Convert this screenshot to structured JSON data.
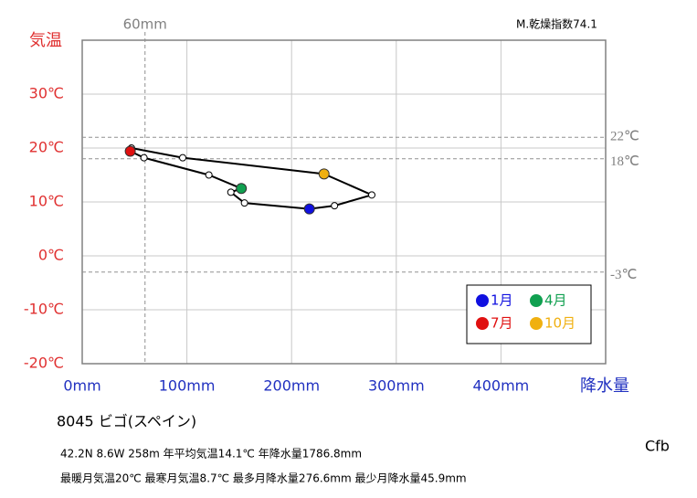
{
  "chart_data": {
    "type": "climograph",
    "y_label": "気温",
    "x_label": "降水量",
    "index_label": "M.乾燥指数74.1",
    "xlim": [
      0,
      500
    ],
    "ylim": [
      -20,
      40
    ],
    "xticks": [
      {
        "value": 0,
        "label": "0mm"
      },
      {
        "value": 100,
        "label": "100mm"
      },
      {
        "value": 200,
        "label": "200mm"
      },
      {
        "value": 300,
        "label": "300mm"
      },
      {
        "value": 400,
        "label": "400mm"
      }
    ],
    "yticks": [
      {
        "value": -20,
        "label": "-20℃"
      },
      {
        "value": -10,
        "label": "-10℃"
      },
      {
        "value": 0,
        "label": "0℃"
      },
      {
        "value": 10,
        "label": "10℃"
      },
      {
        "value": 20,
        "label": "20℃"
      },
      {
        "value": 30,
        "label": "30℃"
      }
    ],
    "grid": true,
    "x": [
      217,
      155,
      142,
      152,
      121,
      59,
      45.9,
      47,
      96,
      231,
      276.6,
      241
    ],
    "values": [
      8.7,
      9.8,
      11.8,
      12.5,
      15.0,
      18.2,
      19.4,
      20.0,
      18.2,
      15.2,
      11.3,
      9.3
    ],
    "line_color": "#000000",
    "highlights": [
      {
        "index": 0,
        "name": "1月",
        "color": "#1010e0"
      },
      {
        "index": 3,
        "name": "4月",
        "color": "#10a050"
      },
      {
        "index": 6,
        "name": "7月",
        "color": "#e01010"
      },
      {
        "index": 9,
        "name": "10月",
        "color": "#f0b010"
      }
    ],
    "hlines": [
      {
        "value": 22,
        "label": "22℃"
      },
      {
        "value": 18,
        "label": "18℃"
      },
      {
        "value": -3,
        "label": "-3℃"
      }
    ],
    "vlines": [
      {
        "value": 60,
        "label": "60mm"
      }
    ],
    "station": "8045  ビゴ(スペイン)",
    "info_line1": "42.2N  8.6W 258m  年平均気温14.1℃ 年降水量1786.8mm",
    "info_line2": "最暖月気温20℃ 最寒月気温8.7℃ 最多月降水量276.6mm 最少月降水量45.9mm",
    "climate": "Cfb"
  }
}
